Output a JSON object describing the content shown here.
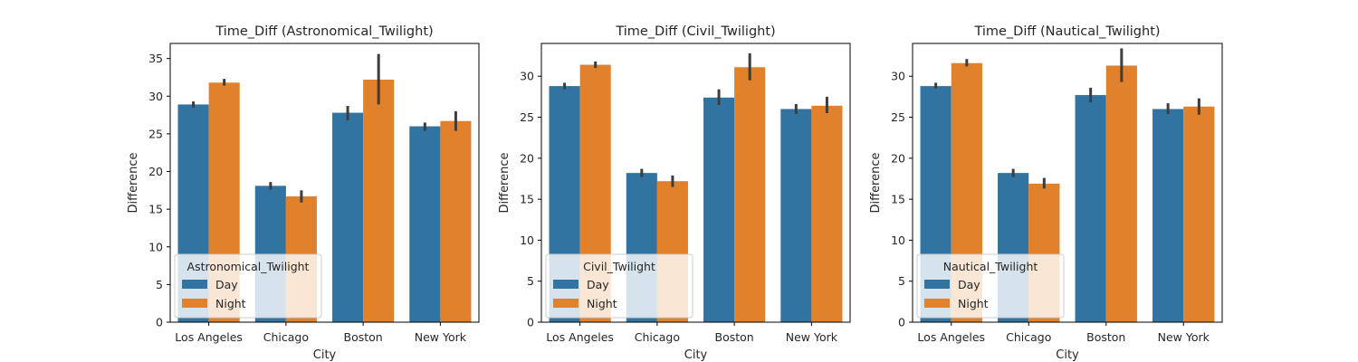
{
  "chart_data": [
    {
      "type": "bar",
      "title": "Time_Diff (Astronomical_Twilight)",
      "xlabel": "City",
      "ylabel": "Difference",
      "categories": [
        "Los Angeles",
        "Chicago",
        "Boston",
        "New York"
      ],
      "ylim": [
        0,
        37
      ],
      "yticks": [
        0,
        5,
        10,
        15,
        20,
        25,
        30,
        35
      ],
      "legend": {
        "title": "Astronomical_Twilight",
        "position": "lower-left"
      },
      "series": [
        {
          "name": "Day",
          "color": "#3274a1",
          "values": [
            28.9,
            18.1,
            27.8,
            26.0
          ],
          "err_low": [
            28.5,
            17.6,
            26.8,
            25.4
          ],
          "err_high": [
            29.3,
            18.6,
            28.7,
            26.5
          ]
        },
        {
          "name": "Night",
          "color": "#e1812c",
          "values": [
            31.8,
            16.7,
            32.2,
            26.7
          ],
          "err_low": [
            31.4,
            15.9,
            28.9,
            25.4
          ],
          "err_high": [
            32.3,
            17.5,
            35.6,
            28.0
          ]
        }
      ]
    },
    {
      "type": "bar",
      "title": "Time_Diff (Civil_Twilight)",
      "xlabel": "City",
      "ylabel": "Difference",
      "categories": [
        "Los Angeles",
        "Chicago",
        "Boston",
        "New York"
      ],
      "ylim": [
        0,
        34
      ],
      "yticks": [
        0,
        5,
        10,
        15,
        20,
        25,
        30
      ],
      "legend": {
        "title": "Civil_Twilight",
        "position": "lower-left"
      },
      "series": [
        {
          "name": "Day",
          "color": "#3274a1",
          "values": [
            28.8,
            18.2,
            27.4,
            26.0
          ],
          "err_low": [
            28.4,
            17.7,
            26.5,
            25.4
          ],
          "err_high": [
            29.2,
            18.7,
            28.4,
            26.6
          ]
        },
        {
          "name": "Night",
          "color": "#e1812c",
          "values": [
            31.4,
            17.2,
            31.1,
            26.4
          ],
          "err_low": [
            31.0,
            16.5,
            29.5,
            25.5
          ],
          "err_high": [
            31.8,
            17.9,
            32.8,
            27.5
          ]
        }
      ]
    },
    {
      "type": "bar",
      "title": "Time_Diff (Nautical_Twilight)",
      "xlabel": "City",
      "ylabel": "Difference",
      "categories": [
        "Los Angeles",
        "Chicago",
        "Boston",
        "New York"
      ],
      "ylim": [
        0,
        34
      ],
      "yticks": [
        0,
        5,
        10,
        15,
        20,
        25,
        30
      ],
      "legend": {
        "title": "Nautical_Twilight",
        "position": "lower-left"
      },
      "series": [
        {
          "name": "Day",
          "color": "#3274a1",
          "values": [
            28.8,
            18.2,
            27.7,
            26.0
          ],
          "err_low": [
            28.5,
            17.7,
            26.8,
            25.4
          ],
          "err_high": [
            29.2,
            18.7,
            28.6,
            26.7
          ]
        },
        {
          "name": "Night",
          "color": "#e1812c",
          "values": [
            31.6,
            16.9,
            31.3,
            26.3
          ],
          "err_low": [
            31.2,
            16.3,
            29.3,
            25.3
          ],
          "err_high": [
            32.1,
            17.6,
            33.4,
            27.3
          ]
        }
      ]
    }
  ]
}
